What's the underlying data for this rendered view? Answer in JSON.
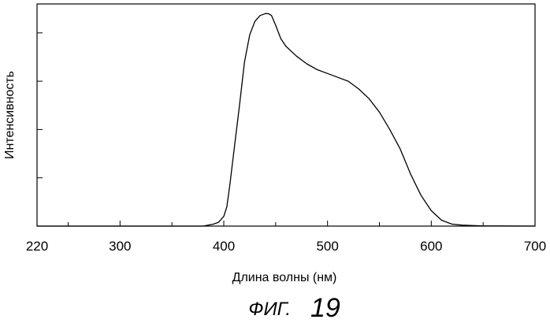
{
  "chart_data": {
    "type": "line",
    "title": "",
    "xlabel": "Длина волны (нм)",
    "ylabel": "Интенсивность",
    "xlim": [
      220,
      700
    ],
    "ylim": [
      0,
      1.15
    ],
    "x_ticks": [
      220,
      300,
      400,
      500,
      600,
      700
    ],
    "x_tick_labels": [
      "220",
      "300",
      "400",
      "500",
      "600",
      "700"
    ],
    "grid": false,
    "legend": "none",
    "series": [
      {
        "x": [
          220,
          300,
          380,
          390,
          395,
          400,
          403,
          406,
          410,
          415,
          420,
          425,
          430,
          435,
          440,
          443,
          446,
          450,
          455,
          460,
          470,
          480,
          490,
          500,
          510,
          520,
          530,
          540,
          550,
          560,
          570,
          580,
          590,
          600,
          610,
          620,
          630,
          640,
          650,
          660,
          700
        ],
        "values": [
          0,
          0,
          0,
          0.01,
          0.02,
          0.05,
          0.1,
          0.22,
          0.4,
          0.62,
          0.85,
          0.99,
          1.06,
          1.09,
          1.1,
          1.1,
          1.09,
          1.04,
          0.97,
          0.93,
          0.88,
          0.84,
          0.81,
          0.79,
          0.77,
          0.75,
          0.71,
          0.66,
          0.59,
          0.5,
          0.4,
          0.27,
          0.16,
          0.08,
          0.03,
          0.01,
          0.005,
          0.003,
          0.001,
          0.001,
          0
        ]
      }
    ]
  },
  "figure_caption": {
    "prefix": "ФИГ.",
    "number": "19"
  }
}
